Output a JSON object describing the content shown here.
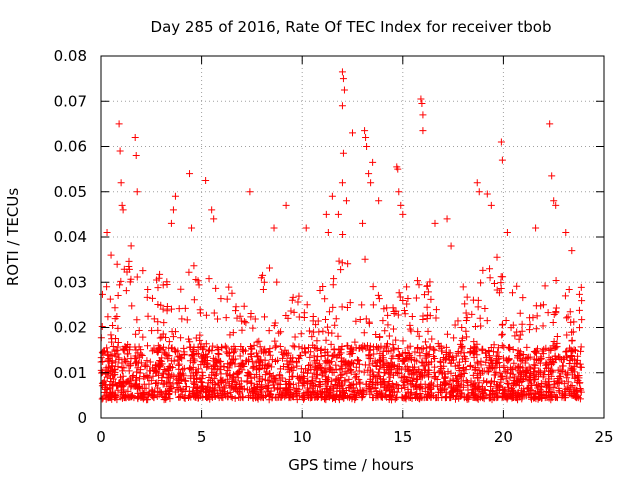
{
  "chart_data": {
    "type": "scatter",
    "title": "Day 285 of 2016, Rate Of TEC Index for receiver tbob",
    "xlabel": "GPS time / hours",
    "ylabel": "ROTI / TECUs",
    "xlim": [
      0,
      25
    ],
    "ylim": [
      0,
      0.08
    ],
    "x_ticks": [
      0,
      5,
      10,
      15,
      20,
      25
    ],
    "x_tick_labels": [
      "0",
      "5",
      "10",
      "15",
      "20",
      "25"
    ],
    "y_ticks": [
      0,
      0.01,
      0.02,
      0.03,
      0.04,
      0.05,
      0.06,
      0.07,
      0.08
    ],
    "y_tick_labels": [
      "0",
      "0.01",
      "0.02",
      "0.03",
      "0.04",
      "0.05",
      "0.06",
      "0.07",
      "0.08"
    ],
    "grid": true,
    "marker": "+",
    "marker_color": "#ff0000",
    "legend": "none",
    "x_data_range": [
      0,
      23.9
    ],
    "series": [
      {
        "name": "ROTI",
        "points": [
          [
            0.9,
            0.065
          ],
          [
            0.95,
            0.059
          ],
          [
            1.0,
            0.052
          ],
          [
            1.05,
            0.047
          ],
          [
            1.1,
            0.046
          ],
          [
            1.7,
            0.062
          ],
          [
            1.75,
            0.058
          ],
          [
            1.8,
            0.05
          ],
          [
            0.3,
            0.041
          ],
          [
            0.5,
            0.036
          ],
          [
            3.5,
            0.043
          ],
          [
            3.6,
            0.046
          ],
          [
            3.7,
            0.049
          ],
          [
            4.4,
            0.054
          ],
          [
            4.5,
            0.042
          ],
          [
            5.2,
            0.0525
          ],
          [
            5.5,
            0.046
          ],
          [
            5.6,
            0.044
          ],
          [
            7.4,
            0.05
          ],
          [
            8.6,
            0.042
          ],
          [
            9.2,
            0.047
          ],
          [
            10.2,
            0.042
          ],
          [
            11.2,
            0.045
          ],
          [
            11.3,
            0.041
          ],
          [
            11.5,
            0.049
          ],
          [
            11.8,
            0.045
          ],
          [
            12.0,
            0.0765
          ],
          [
            12.05,
            0.075
          ],
          [
            12.1,
            0.0725
          ],
          [
            12.0,
            0.069
          ],
          [
            12.05,
            0.0585
          ],
          [
            12.0,
            0.052
          ],
          [
            12.2,
            0.048
          ],
          [
            12.5,
            0.063
          ],
          [
            13.0,
            0.043
          ],
          [
            13.1,
            0.0635
          ],
          [
            13.15,
            0.062
          ],
          [
            13.2,
            0.06
          ],
          [
            13.3,
            0.054
          ],
          [
            13.4,
            0.052
          ],
          [
            13.5,
            0.0565
          ],
          [
            13.8,
            0.048
          ],
          [
            14.7,
            0.0555
          ],
          [
            14.75,
            0.055
          ],
          [
            14.8,
            0.05
          ],
          [
            14.9,
            0.047
          ],
          [
            15.0,
            0.045
          ],
          [
            15.9,
            0.0705
          ],
          [
            15.95,
            0.0695
          ],
          [
            16.0,
            0.067
          ],
          [
            16.0,
            0.0635
          ],
          [
            16.6,
            0.043
          ],
          [
            17.2,
            0.044
          ],
          [
            17.4,
            0.038
          ],
          [
            18.7,
            0.052
          ],
          [
            18.8,
            0.05
          ],
          [
            19.2,
            0.0495
          ],
          [
            19.4,
            0.047
          ],
          [
            19.9,
            0.061
          ],
          [
            19.95,
            0.057
          ],
          [
            20.2,
            0.041
          ],
          [
            21.6,
            0.042
          ],
          [
            22.3,
            0.065
          ],
          [
            22.4,
            0.0535
          ],
          [
            22.5,
            0.048
          ],
          [
            22.6,
            0.047
          ],
          [
            23.1,
            0.041
          ],
          [
            23.4,
            0.037
          ]
        ],
        "dense_band": {
          "x_range": [
            0,
            23.9
          ],
          "y_lower": 0.002,
          "y_upper_typical": 0.035,
          "y_center": 0.01
        }
      }
    ]
  }
}
